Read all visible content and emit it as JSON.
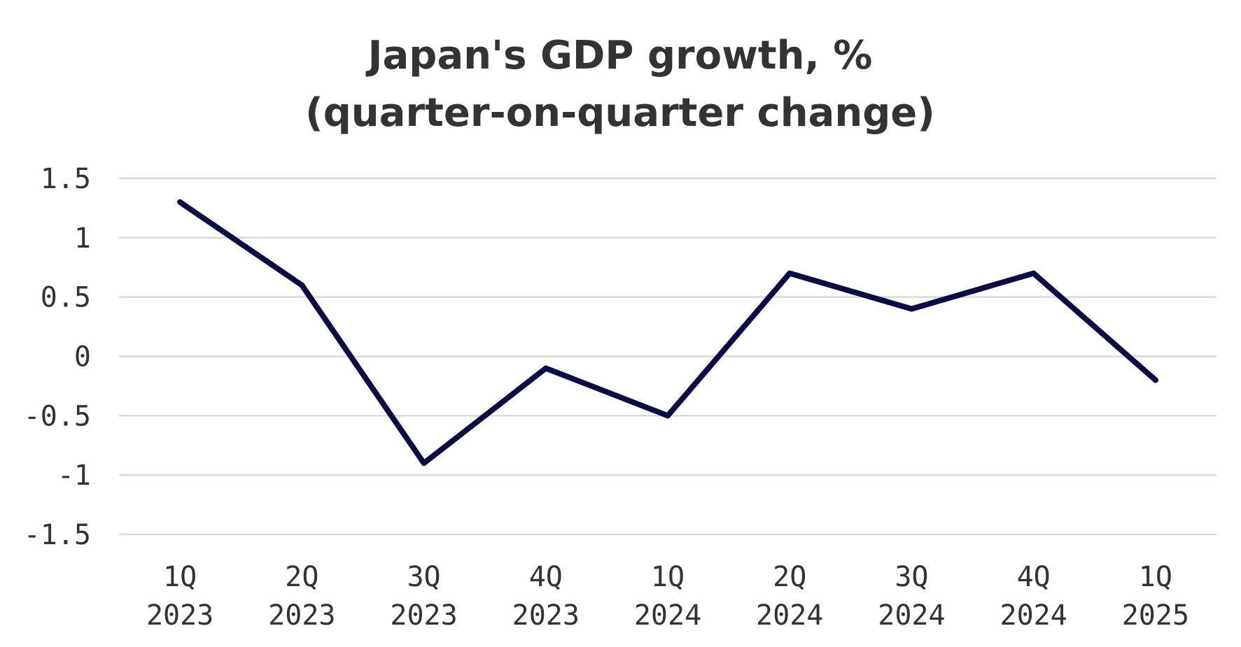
{
  "chart_data": {
    "type": "line",
    "title_lines": [
      "Japan's GDP growth, %",
      "(quarter-on-quarter change)"
    ],
    "categories": [
      [
        "1Q",
        "2023"
      ],
      [
        "2Q",
        "2023"
      ],
      [
        "3Q",
        "2023"
      ],
      [
        "4Q",
        "2023"
      ],
      [
        "1Q",
        "2024"
      ],
      [
        "2Q",
        "2024"
      ],
      [
        "3Q",
        "2024"
      ],
      [
        "4Q",
        "2024"
      ],
      [
        "1Q",
        "2025"
      ]
    ],
    "series": [
      {
        "values": [
          1.3,
          0.6,
          -0.9,
          -0.1,
          -0.5,
          0.7,
          0.4,
          0.7,
          -0.2
        ],
        "color": "#0a0a45"
      }
    ],
    "y_ticks": [
      1.5,
      1,
      0.5,
      0,
      -0.5,
      -1,
      -1.5
    ],
    "y_tick_labels": [
      "1.5",
      "1",
      "0.5",
      "0",
      "-0.5",
      "-1",
      "-1.5"
    ],
    "ylim": [
      -1.5,
      1.5
    ],
    "grid": true,
    "legend": false
  }
}
